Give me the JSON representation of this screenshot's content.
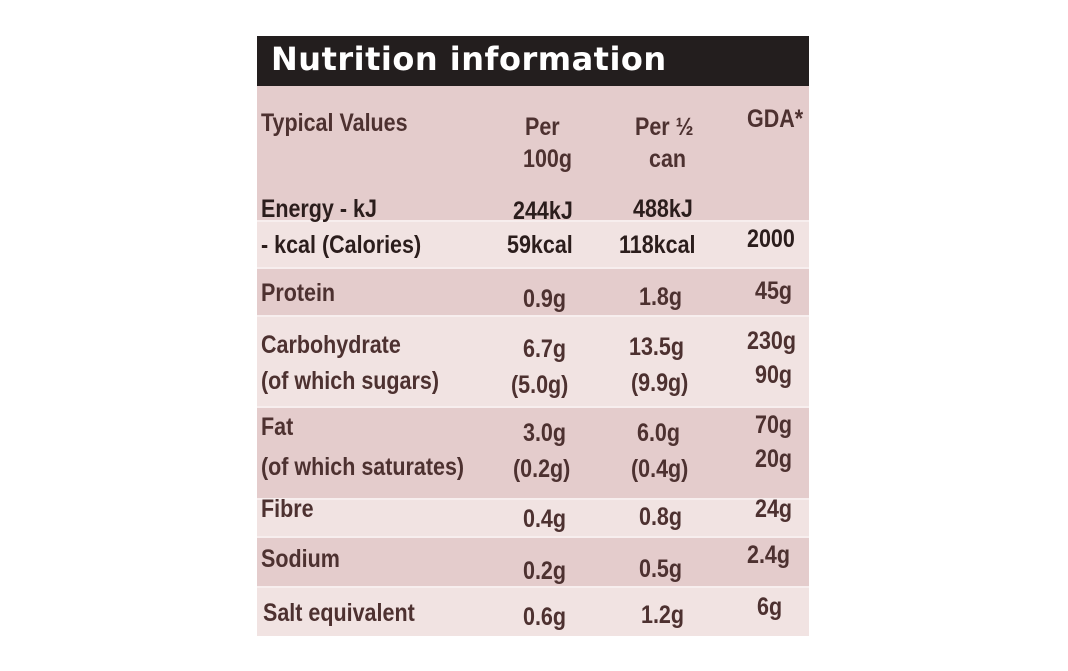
{
  "title": "Nutrition information",
  "header": {
    "typical_values": "Typical Values",
    "per100_l1": "Per",
    "per100_l2": "100g",
    "perhalf_l1": "Per ½",
    "perhalf_l2": "can",
    "gda": "GDA*"
  },
  "rows": {
    "energy": {
      "label1": "Energy - kJ",
      "label2": "- kcal (Calories)",
      "per100_1": "244kJ",
      "per100_2": "59kcal",
      "perhalf_1": "488kJ",
      "perhalf_2": "118kcal",
      "gda_2": "2000"
    },
    "protein": {
      "label": "Protein",
      "per100": "0.9g",
      "perhalf": "1.8g",
      "gda": "45g"
    },
    "carbohydrate": {
      "label1": "Carbohydrate",
      "label2": "(of which sugars)",
      "per100_1": "6.7g",
      "per100_2": "(5.0g)",
      "perhalf_1": "13.5g",
      "perhalf_2": "(9.9g)",
      "gda_1": "230g",
      "gda_2": "90g"
    },
    "fat": {
      "label1": "Fat",
      "label2": "(of which saturates)",
      "per100_1": "3.0g",
      "per100_2": "(0.2g)",
      "perhalf_1": "6.0g",
      "perhalf_2": "(0.4g)",
      "gda_1": "70g",
      "gda_2": "20g"
    },
    "fibre": {
      "label": "Fibre",
      "per100": "0.4g",
      "perhalf": "0.8g",
      "gda": "24g"
    },
    "sodium": {
      "label": "Sodium",
      "per100": "0.2g",
      "perhalf": "0.5g",
      "gda": "2.4g"
    },
    "salt": {
      "label": "Salt equivalent",
      "per100": "0.6g",
      "perhalf": "1.2g",
      "gda": "6g"
    }
  },
  "colors": {
    "title_bg": "#231e1e",
    "title_text": "#ffffff",
    "label_bg": "#f1e3e2",
    "shade_bg": "#e4cccc",
    "text": "#4d3130"
  }
}
